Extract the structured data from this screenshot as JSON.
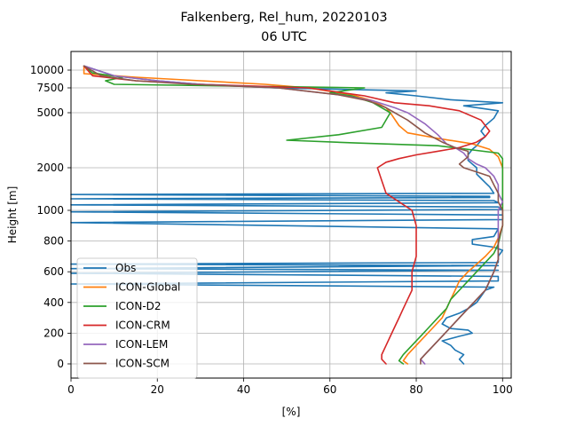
{
  "chart_data": {
    "type": "line",
    "title": "Falkenberg, Rel_hum, 20220103",
    "subtitle": "06 UTC",
    "xlabel": "[%]",
    "ylabel": "Height [m]",
    "xlim": [
      0,
      102
    ],
    "ylim": [
      -100,
      12000
    ],
    "grid": true,
    "legend_position": "lower-left",
    "x_ticks": [
      "0",
      "20",
      "40",
      "60",
      "80",
      "100"
    ],
    "y_ticks": [
      "0",
      "200",
      "400",
      "600",
      "800",
      "1000",
      "2000",
      "5000",
      "7500",
      "10000"
    ],
    "series": [
      {
        "name": "Obs",
        "color": "#1f77b4",
        "points": [
          [
            91,
            0
          ],
          [
            90,
            30
          ],
          [
            91,
            60
          ],
          [
            89,
            90
          ],
          [
            88,
            120
          ],
          [
            86,
            150
          ],
          [
            90,
            180
          ],
          [
            93,
            200
          ],
          [
            92,
            220
          ],
          [
            88,
            230
          ],
          [
            86,
            260
          ],
          [
            87,
            300
          ],
          [
            90,
            330
          ],
          [
            92,
            360
          ],
          [
            94,
            400
          ],
          [
            95,
            440
          ],
          [
            96,
            480
          ],
          [
            98,
            500
          ],
          [
            0,
            520
          ],
          [
            99,
            540
          ],
          [
            99,
            570
          ],
          [
            0,
            590
          ],
          [
            99,
            610
          ],
          [
            0,
            620
          ],
          [
            99,
            640
          ],
          [
            0,
            650
          ],
          [
            99,
            660
          ],
          [
            99,
            700
          ],
          [
            100,
            740
          ],
          [
            98,
            760
          ],
          [
            93,
            780
          ],
          [
            93,
            810
          ],
          [
            98,
            830
          ],
          [
            99,
            880
          ],
          [
            0,
            920
          ],
          [
            100,
            940
          ],
          [
            100,
            970
          ],
          [
            0,
            990
          ],
          [
            100,
            1020
          ],
          [
            99,
            1080
          ],
          [
            0,
            1130
          ],
          [
            99,
            1180
          ],
          [
            98,
            1230
          ],
          [
            0,
            1270
          ],
          [
            97,
            1300
          ],
          [
            97,
            1330
          ],
          [
            0,
            1370
          ],
          [
            98,
            1400
          ],
          [
            97,
            1550
          ],
          [
            96,
            1650
          ],
          [
            95,
            1750
          ],
          [
            94,
            1850
          ],
          [
            94,
            2000
          ],
          [
            93,
            2200
          ],
          [
            92,
            2400
          ],
          [
            92,
            2700
          ],
          [
            93,
            3000
          ],
          [
            94,
            3200
          ],
          [
            95,
            3500
          ],
          [
            96,
            3700
          ],
          [
            95,
            4000
          ],
          [
            96,
            4300
          ],
          [
            98,
            4700
          ],
          [
            99,
            5200
          ],
          [
            91,
            5700
          ],
          [
            100,
            6000
          ],
          [
            88,
            6300
          ],
          [
            80,
            6700
          ],
          [
            73,
            7000
          ],
          [
            80,
            7200
          ],
          [
            47,
            7500
          ],
          [
            30,
            8000
          ],
          [
            20,
            8500
          ],
          [
            10,
            9200
          ],
          [
            3,
            10500
          ]
        ]
      },
      {
        "name": "ICON-Global",
        "color": "#ff7f0e",
        "points": [
          [
            78,
            0
          ],
          [
            77,
            20
          ],
          [
            78,
            60
          ],
          [
            80,
            120
          ],
          [
            82,
            180
          ],
          [
            84,
            240
          ],
          [
            86,
            300
          ],
          [
            87,
            360
          ],
          [
            88,
            420
          ],
          [
            89,
            480
          ],
          [
            90,
            540
          ],
          [
            92,
            600
          ],
          [
            94,
            650
          ],
          [
            96,
            700
          ],
          [
            98,
            760
          ],
          [
            99,
            820
          ],
          [
            100,
            900
          ],
          [
            100,
            1000
          ],
          [
            100,
            1200
          ],
          [
            100,
            1500
          ],
          [
            100,
            2000
          ],
          [
            99,
            2600
          ],
          [
            97,
            3000
          ],
          [
            93,
            3300
          ],
          [
            85,
            3600
          ],
          [
            78,
            3900
          ],
          [
            76,
            4300
          ],
          [
            74,
            5000
          ],
          [
            73,
            5500
          ],
          [
            70,
            6200
          ],
          [
            65,
            6800
          ],
          [
            55,
            7500
          ],
          [
            45,
            8000
          ],
          [
            30,
            8500
          ],
          [
            15,
            9000
          ],
          [
            3,
            9500
          ],
          [
            3,
            10500
          ]
        ]
      },
      {
        "name": "ICON-D2",
        "color": "#2ca02c",
        "points": [
          [
            77,
            0
          ],
          [
            76,
            20
          ],
          [
            77,
            60
          ],
          [
            79,
            120
          ],
          [
            81,
            180
          ],
          [
            83,
            240
          ],
          [
            85,
            300
          ],
          [
            87,
            360
          ],
          [
            88,
            420
          ],
          [
            90,
            480
          ],
          [
            92,
            540
          ],
          [
            94,
            600
          ],
          [
            96,
            660
          ],
          [
            98,
            720
          ],
          [
            99,
            780
          ],
          [
            100,
            900
          ],
          [
            100,
            1200
          ],
          [
            100,
            1600
          ],
          [
            100,
            2000
          ],
          [
            100,
            2500
          ],
          [
            99,
            2800
          ],
          [
            85,
            3200
          ],
          [
            66,
            3350
          ],
          [
            50,
            3500
          ],
          [
            62,
            3800
          ],
          [
            72,
            4200
          ],
          [
            74,
            5000
          ],
          [
            72,
            5500
          ],
          [
            70,
            6000
          ],
          [
            65,
            6700
          ],
          [
            60,
            7000
          ],
          [
            68,
            7500
          ],
          [
            10,
            8000
          ],
          [
            8,
            8500
          ],
          [
            12,
            9000
          ],
          [
            5,
            9600
          ],
          [
            3,
            10500
          ]
        ]
      },
      {
        "name": "ICON-CRM",
        "color": "#d62728",
        "points": [
          [
            73,
            0
          ],
          [
            72,
            30
          ],
          [
            72,
            60
          ],
          [
            73,
            120
          ],
          [
            74,
            180
          ],
          [
            75,
            240
          ],
          [
            76,
            300
          ],
          [
            77,
            360
          ],
          [
            78,
            420
          ],
          [
            79,
            480
          ],
          [
            79,
            600
          ],
          [
            80,
            700
          ],
          [
            80,
            800
          ],
          [
            80,
            900
          ],
          [
            79,
            1000
          ],
          [
            76,
            1200
          ],
          [
            73,
            1400
          ],
          [
            72,
            1700
          ],
          [
            71,
            2000
          ],
          [
            73,
            2300
          ],
          [
            76,
            2500
          ],
          [
            80,
            2700
          ],
          [
            85,
            2900
          ],
          [
            90,
            3100
          ],
          [
            94,
            3400
          ],
          [
            96,
            3700
          ],
          [
            97,
            4000
          ],
          [
            95,
            4600
          ],
          [
            90,
            5200
          ],
          [
            83,
            5700
          ],
          [
            75,
            6000
          ],
          [
            68,
            6700
          ],
          [
            55,
            7500
          ],
          [
            30,
            8000
          ],
          [
            15,
            8500
          ],
          [
            5,
            9200
          ],
          [
            3,
            10500
          ]
        ]
      },
      {
        "name": "ICON-LEM",
        "color": "#9467bd",
        "points": [
          [
            82,
            0
          ],
          [
            81,
            30
          ],
          [
            82,
            60
          ],
          [
            84,
            120
          ],
          [
            86,
            180
          ],
          [
            88,
            240
          ],
          [
            90,
            300
          ],
          [
            92,
            360
          ],
          [
            94,
            420
          ],
          [
            96,
            480
          ],
          [
            97,
            540
          ],
          [
            98,
            600
          ],
          [
            99,
            680
          ],
          [
            99,
            800
          ],
          [
            99,
            1000
          ],
          [
            100,
            1200
          ],
          [
            99,
            1400
          ],
          [
            99,
            1600
          ],
          [
            98,
            1800
          ],
          [
            96,
            2000
          ],
          [
            94,
            2200
          ],
          [
            92,
            2500
          ],
          [
            91,
            2800
          ],
          [
            89,
            3100
          ],
          [
            87,
            3300
          ],
          [
            85,
            3800
          ],
          [
            82,
            4400
          ],
          [
            78,
            5000
          ],
          [
            75,
            5500
          ],
          [
            70,
            6200
          ],
          [
            62,
            6800
          ],
          [
            48,
            7500
          ],
          [
            30,
            8000
          ],
          [
            20,
            8500
          ],
          [
            10,
            9200
          ],
          [
            3,
            10500
          ]
        ]
      },
      {
        "name": "ICON-SCM",
        "color": "#8c564b",
        "points": [
          [
            81,
            0
          ],
          [
            81,
            30
          ],
          [
            82,
            60
          ],
          [
            84,
            120
          ],
          [
            86,
            180
          ],
          [
            88,
            240
          ],
          [
            90,
            300
          ],
          [
            92,
            360
          ],
          [
            94,
            420
          ],
          [
            96,
            480
          ],
          [
            97,
            540
          ],
          [
            98,
            600
          ],
          [
            99,
            680
          ],
          [
            99,
            800
          ],
          [
            100,
            900
          ],
          [
            100,
            1000
          ],
          [
            99,
            1200
          ],
          [
            99,
            1400
          ],
          [
            98,
            1600
          ],
          [
            97,
            1800
          ],
          [
            94,
            1900
          ],
          [
            91,
            2000
          ],
          [
            90,
            2200
          ],
          [
            91,
            2400
          ],
          [
            92,
            2600
          ],
          [
            92,
            2900
          ],
          [
            89,
            3100
          ],
          [
            86,
            3400
          ],
          [
            82,
            3900
          ],
          [
            78,
            4600
          ],
          [
            75,
            5000
          ],
          [
            73,
            5500
          ],
          [
            69,
            6200
          ],
          [
            62,
            6800
          ],
          [
            48,
            7500
          ],
          [
            28,
            8000
          ],
          [
            15,
            8500
          ],
          [
            7,
            9200
          ],
          [
            3,
            10500
          ]
        ]
      }
    ]
  }
}
